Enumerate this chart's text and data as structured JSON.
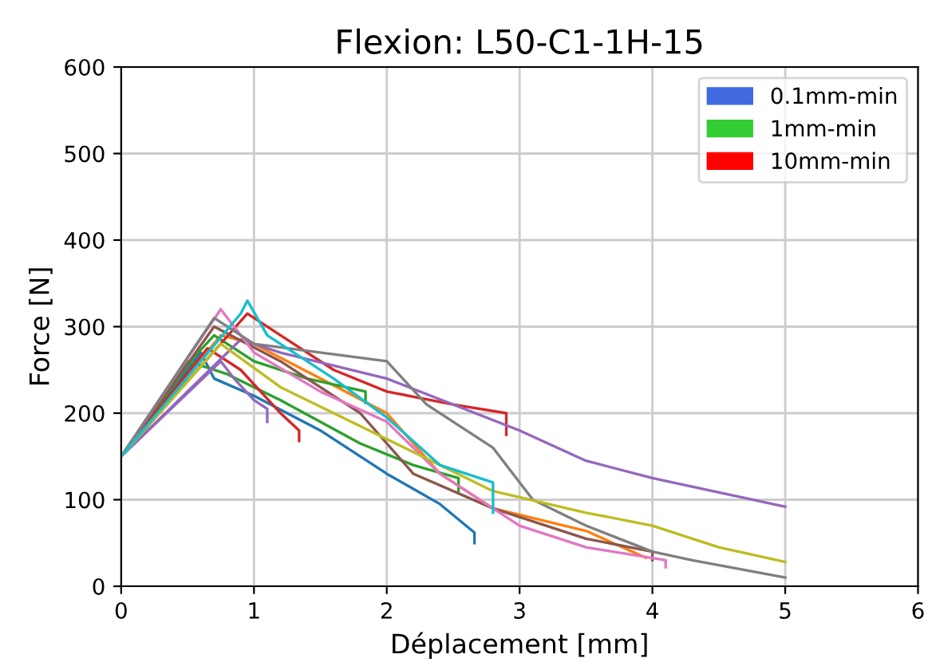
{
  "chart_data": {
    "type": "line",
    "title": "Flexion: L50-C1-1H-15",
    "xlabel": "Déplacement [mm]",
    "ylabel": "Force [N]",
    "xlim": [
      0,
      6
    ],
    "xticks": [
      0,
      1,
      2,
      3,
      4,
      5,
      6
    ],
    "ylim": [
      0,
      600
    ],
    "yticks": [
      0,
      100,
      200,
      300,
      400,
      500,
      600
    ],
    "grid": true,
    "legend": "top right",
    "marker": "none",
    "line_style": "solid",
    "series": [
      {
        "color": "#1f77b4",
        "x": [
          0,
          0.6,
          0.7,
          1.0,
          1.5,
          2.0,
          2.4,
          2.66,
          2.66
        ],
        "values": [
          150,
          270,
          240,
          220,
          180,
          130,
          95,
          62,
          50
        ]
      },
      {
        "color": "#ff7f0e",
        "x": [
          0,
          0.75,
          1.0,
          1.5,
          2.0,
          2.4,
          2.8,
          3.5,
          3.95
        ],
        "values": [
          150,
          290,
          280,
          240,
          200,
          130,
          90,
          64,
          33
        ]
      },
      {
        "color": "#2ca02c",
        "x": [
          0,
          0.55,
          0.7,
          1.0,
          1.4,
          1.84,
          1.84
        ],
        "values": [
          150,
          265,
          290,
          260,
          240,
          225,
          212
        ]
      },
      {
        "color": "#2ca02c",
        "x": [
          0,
          0.5,
          0.8,
          1.2,
          1.8,
          2.2,
          2.54,
          2.54
        ],
        "values": [
          150,
          260,
          245,
          215,
          165,
          140,
          125,
          110
        ]
      },
      {
        "color": "#d62728",
        "x": [
          0,
          0.95,
          1.2,
          1.6,
          2.0,
          2.5,
          2.9,
          2.9
        ],
        "values": [
          150,
          315,
          290,
          250,
          225,
          210,
          200,
          175
        ]
      },
      {
        "color": "#d62728",
        "x": [
          0,
          0.65,
          0.9,
          1.2,
          1.34,
          1.34
        ],
        "values": [
          150,
          275,
          250,
          200,
          180,
          168
        ]
      },
      {
        "color": "#9467bd",
        "x": [
          0,
          0.9,
          1.2,
          2.0,
          3.0,
          3.5,
          4.0,
          5.0
        ],
        "values": [
          150,
          285,
          270,
          240,
          180,
          145,
          125,
          92
        ]
      },
      {
        "color": "#9467bd",
        "x": [
          0,
          0.75,
          0.85,
          1.0,
          1.1,
          1.1
        ],
        "values": [
          150,
          260,
          240,
          215,
          205,
          190
        ]
      },
      {
        "color": "#8c564b",
        "x": [
          0,
          0.7,
          1.2,
          1.8,
          2.2,
          2.8,
          3.5,
          4.0,
          4.0
        ],
        "values": [
          150,
          300,
          260,
          200,
          130,
          90,
          55,
          40,
          30
        ]
      },
      {
        "color": "#e377c2",
        "x": [
          0,
          0.75,
          1.0,
          1.5,
          2.0,
          2.4,
          3.0,
          3.5,
          4.1,
          4.1
        ],
        "values": [
          150,
          320,
          270,
          225,
          190,
          130,
          70,
          45,
          30,
          22
        ]
      },
      {
        "color": "#7f7f7f",
        "x": [
          0,
          0.7,
          1.0,
          2.0,
          2.3,
          2.8,
          3.1,
          3.5,
          4.0,
          4.3,
          5.0
        ],
        "values": [
          150,
          310,
          280,
          260,
          210,
          160,
          100,
          70,
          40,
          30,
          10
        ]
      },
      {
        "color": "#bcbd22",
        "x": [
          0,
          0.75,
          1.2,
          2.0,
          2.8,
          3.5,
          4.0,
          4.5,
          5.0
        ],
        "values": [
          150,
          280,
          230,
          170,
          110,
          85,
          70,
          45,
          28
        ]
      },
      {
        "color": "#17becf",
        "x": [
          0,
          0.9,
          0.95,
          1.1,
          1.6,
          2.0,
          2.4,
          2.8,
          2.8
        ],
        "values": [
          150,
          315,
          330,
          290,
          240,
          195,
          140,
          120,
          85
        ]
      },
      {
        "type": "bar",
        "name": "0.1mm-min",
        "color": "#4169e1"
      },
      {
        "type": "bar",
        "name": "1mm-min",
        "color": "#32cd32"
      },
      {
        "type": "bar",
        "name": "10mm-min",
        "color": "#ff0000"
      }
    ]
  }
}
